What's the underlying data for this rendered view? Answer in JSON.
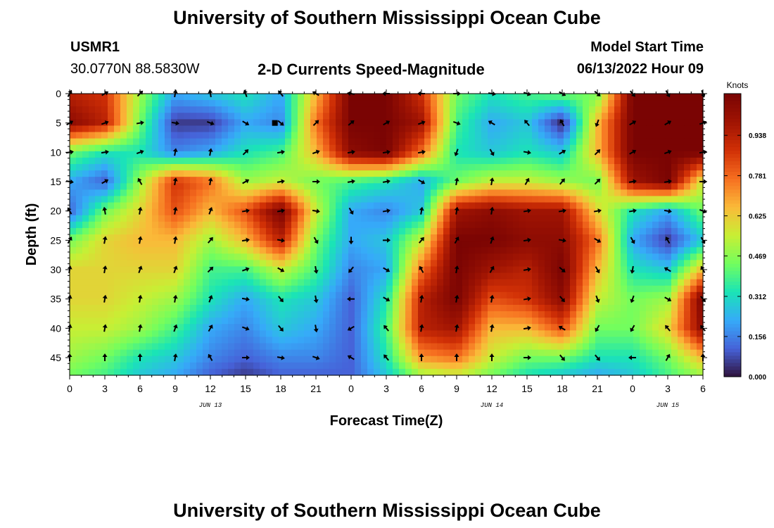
{
  "header": {
    "title": "University of Southern Mississippi Ocean Cube",
    "station_id": "USMR1",
    "station_coords": "30.0770N  88.5830W",
    "subtitle": "2-D Currents Speed-Magnitude",
    "model_label": "Model Start Time",
    "model_time": "06/13/2022 Hour 09"
  },
  "footer": {
    "title": "University of Southern Mississippi Ocean Cube"
  },
  "chart_data": {
    "type": "heatmap",
    "xlabel": "Forecast Time(Z)",
    "ylabel": "Depth (ft)",
    "x_range": [
      0,
      54
    ],
    "y_range": [
      0,
      48
    ],
    "x_ticks": [
      0,
      3,
      6,
      9,
      12,
      15,
      18,
      21,
      24,
      27,
      30,
      33,
      36,
      39,
      42,
      45,
      48,
      51,
      54
    ],
    "x_tick_labels": [
      "0",
      "3",
      "6",
      "9",
      "12",
      "15",
      "18",
      "21",
      "0",
      "3",
      "6",
      "9",
      "12",
      "15",
      "18",
      "21",
      "0",
      "3",
      "6"
    ],
    "y_ticks": [
      0,
      5,
      10,
      15,
      20,
      25,
      30,
      35,
      40,
      45
    ],
    "y_tick_labels": [
      "0",
      "5",
      "10",
      "15",
      "20",
      "25",
      "30",
      "35",
      "40",
      "45"
    ],
    "date_labels": [
      {
        "x": 12,
        "text": "JUN 13"
      },
      {
        "x": 36,
        "text": "JUN 14"
      },
      {
        "x": 51,
        "text": "JUN 15"
      }
    ],
    "colorbar": {
      "title": "Knots",
      "min": 0.0,
      "max": 1.1,
      "ticks": [
        0.0,
        0.156,
        0.312,
        0.469,
        0.625,
        0.781,
        0.938
      ],
      "tick_labels": [
        "0.000",
        "0.156",
        "0.312",
        "0.469",
        "0.625",
        "0.781",
        "0.938"
      ]
    },
    "grid_times": [
      0,
      3,
      6,
      9,
      12,
      15,
      18,
      21,
      24,
      27,
      30,
      33,
      36,
      39,
      42,
      45,
      48,
      51,
      54
    ],
    "grid_depths": [
      0,
      5,
      10,
      15,
      20,
      25,
      30,
      35,
      40,
      45,
      48
    ],
    "speed": [
      [
        0.85,
        0.8,
        0.45,
        0.2,
        0.25,
        0.3,
        0.2,
        0.6,
        1.0,
        1.0,
        0.8,
        0.4,
        0.3,
        0.35,
        0.4,
        0.4,
        1.0,
        1.0,
        1.0
      ],
      [
        0.95,
        0.85,
        0.4,
        0.05,
        0.05,
        0.2,
        0.15,
        0.7,
        1.0,
        1.0,
        0.9,
        0.35,
        0.2,
        0.25,
        0.02,
        0.6,
        1.0,
        1.0,
        1.0
      ],
      [
        0.4,
        0.3,
        0.3,
        0.15,
        0.2,
        0.3,
        0.35,
        0.6,
        0.95,
        1.0,
        0.7,
        0.3,
        0.25,
        0.3,
        0.25,
        0.6,
        1.0,
        1.0,
        1.0
      ],
      [
        0.2,
        0.1,
        0.45,
        0.8,
        0.7,
        0.45,
        0.5,
        0.4,
        0.35,
        0.3,
        0.2,
        0.4,
        0.5,
        0.5,
        0.45,
        0.4,
        0.9,
        1.0,
        0.5
      ],
      [
        0.1,
        0.4,
        0.55,
        0.75,
        0.6,
        0.75,
        1.0,
        0.5,
        0.2,
        0.15,
        0.25,
        0.9,
        0.95,
        0.9,
        0.9,
        0.55,
        0.3,
        0.2,
        0.4
      ],
      [
        0.4,
        0.55,
        0.6,
        0.6,
        0.45,
        0.6,
        0.85,
        0.4,
        0.2,
        0.25,
        0.5,
        1.0,
        1.0,
        0.95,
        0.95,
        0.7,
        0.2,
        0.05,
        0.25
      ],
      [
        0.55,
        0.55,
        0.55,
        0.55,
        0.35,
        0.35,
        0.5,
        0.35,
        0.15,
        0.2,
        0.7,
        1.0,
        0.9,
        0.85,
        1.0,
        0.6,
        0.3,
        0.25,
        0.6
      ],
      [
        0.55,
        0.55,
        0.5,
        0.45,
        0.3,
        0.2,
        0.3,
        0.25,
        0.1,
        0.3,
        0.85,
        1.0,
        0.75,
        0.8,
        0.95,
        0.5,
        0.4,
        0.45,
        1.0
      ],
      [
        0.5,
        0.5,
        0.45,
        0.35,
        0.2,
        0.15,
        0.25,
        0.2,
        0.1,
        0.35,
        0.85,
        0.9,
        0.6,
        0.6,
        0.75,
        0.4,
        0.4,
        0.55,
        0.95
      ],
      [
        0.45,
        0.4,
        0.3,
        0.25,
        0.15,
        0.1,
        0.15,
        0.15,
        0.1,
        0.3,
        0.65,
        0.7,
        0.5,
        0.4,
        0.4,
        0.3,
        0.3,
        0.4,
        0.6
      ],
      [
        0.4,
        0.35,
        0.25,
        0.2,
        0.1,
        0.05,
        0.1,
        0.1,
        0.1,
        0.25,
        0.45,
        0.5,
        0.4,
        0.3,
        0.25,
        0.2,
        0.25,
        0.35,
        0.45
      ]
    ],
    "arrow_times": [
      0,
      3,
      6,
      9,
      12,
      15,
      18,
      21,
      24,
      27,
      30,
      33,
      36,
      39,
      42,
      45,
      48,
      51,
      54
    ],
    "arrow_depths": [
      0,
      5,
      10,
      15,
      20,
      25,
      30,
      35,
      40,
      45
    ],
    "arrow_dirs_deg": [
      [
        30,
        60,
        45,
        10,
        350,
        340,
        320,
        300,
        280,
        270,
        270,
        90,
        100,
        110,
        120,
        130,
        140,
        150,
        160
      ],
      [
        60,
        70,
        80,
        100,
        110,
        120,
        130,
        45,
        50,
        60,
        70,
        110,
        300,
        320,
        330,
        200,
        60,
        60,
        70
      ],
      [
        80,
        80,
        70,
        10,
        10,
        45,
        80,
        70,
        80,
        80,
        80,
        200,
        150,
        100,
        60,
        45,
        60,
        70,
        80
      ],
      [
        100,
        60,
        330,
        10,
        10,
        60,
        80,
        90,
        80,
        80,
        120,
        10,
        10,
        30,
        40,
        45,
        80,
        80,
        90
      ],
      [
        330,
        350,
        10,
        10,
        20,
        80,
        80,
        100,
        150,
        80,
        10,
        10,
        10,
        80,
        80,
        80,
        80,
        100,
        110
      ],
      [
        30,
        10,
        10,
        10,
        40,
        80,
        100,
        150,
        180,
        90,
        40,
        30,
        20,
        80,
        100,
        120,
        150,
        330,
        150
      ],
      [
        10,
        10,
        20,
        20,
        45,
        70,
        120,
        170,
        220,
        120,
        330,
        10,
        30,
        80,
        130,
        150,
        190,
        300,
        330
      ],
      [
        10,
        10,
        10,
        10,
        20,
        100,
        140,
        170,
        270,
        120,
        10,
        10,
        10,
        80,
        140,
        160,
        200,
        120,
        140
      ],
      [
        10,
        10,
        10,
        20,
        30,
        110,
        140,
        170,
        240,
        320,
        10,
        10,
        10,
        80,
        300,
        210,
        210,
        320,
        320
      ],
      [
        0,
        0,
        0,
        10,
        330,
        90,
        100,
        110,
        300,
        320,
        0,
        0,
        0,
        90,
        140,
        140,
        270,
        30,
        0
      ]
    ],
    "highlight_marker": {
      "x": 17.5,
      "y": 5
    }
  }
}
